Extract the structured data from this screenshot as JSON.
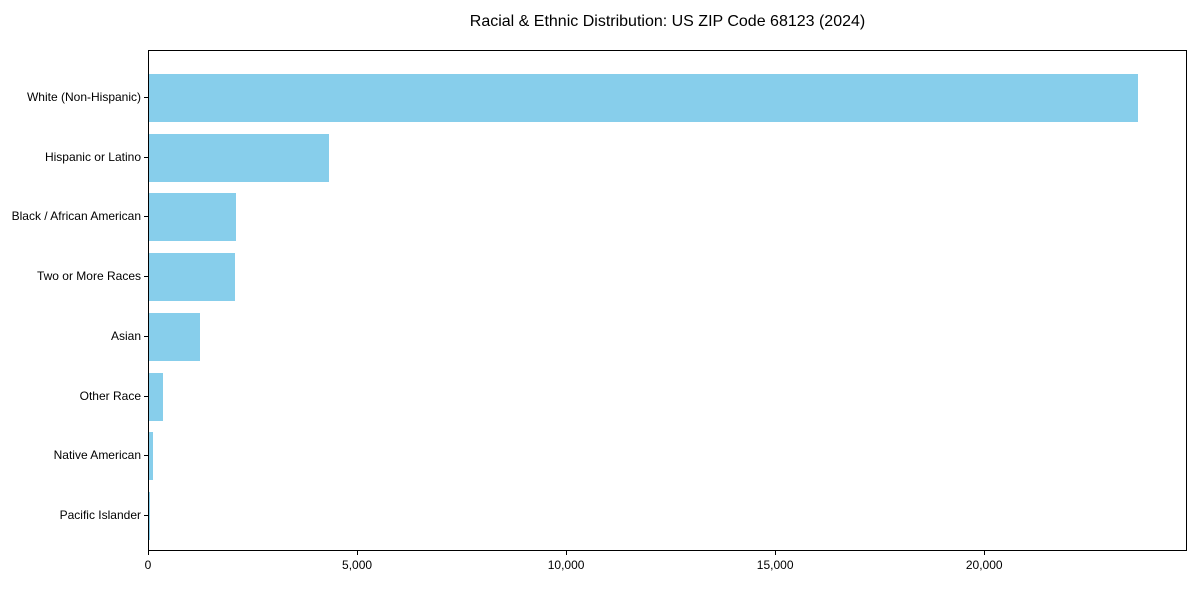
{
  "chart_data": {
    "type": "bar",
    "orientation": "horizontal",
    "title": "Racial & Ethnic Distribution: US ZIP Code 68123 (2024)",
    "categories": [
      "White (Non-Hispanic)",
      "Hispanic or Latino",
      "Black / African American",
      "Two or More Races",
      "Asian",
      "Other Race",
      "Native American",
      "Pacific Islander"
    ],
    "values": [
      23650,
      4300,
      2070,
      2050,
      1230,
      330,
      100,
      15
    ],
    "xlabel": "",
    "ylabel": "",
    "xlim": [
      0,
      24850
    ],
    "xticks": [
      0,
      5000,
      10000,
      15000,
      20000
    ],
    "xtick_labels": [
      "0",
      "5,000",
      "10,000",
      "15,000",
      "20,000"
    ],
    "bar_color": "#87CEEB",
    "background_color": "#ffffff",
    "spine_color": "#000000",
    "grid": false,
    "legend": null
  }
}
